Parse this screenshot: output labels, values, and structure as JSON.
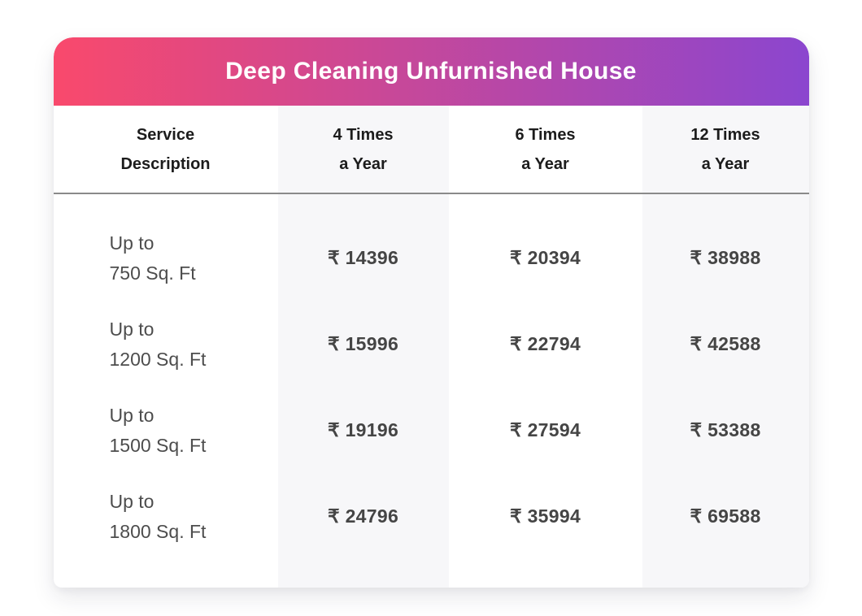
{
  "header": {
    "title": "Deep Cleaning Unfurnished House",
    "gradient_start": "#F9496C",
    "gradient_end": "#8B46CF"
  },
  "table": {
    "columns": [
      {
        "line1": "Service",
        "line2": "Description"
      },
      {
        "line1": "4 Times",
        "line2": "a Year"
      },
      {
        "line1": "6 Times",
        "line2": "a Year"
      },
      {
        "line1": "12 Times",
        "line2": "a Year"
      }
    ],
    "rows": [
      {
        "label_line1": "Up to",
        "label_line2": "750 Sq. Ft",
        "prices": [
          "₹ 14396",
          "₹ 20394",
          "₹ 38988"
        ]
      },
      {
        "label_line1": "Up to",
        "label_line2": "1200 Sq. Ft",
        "prices": [
          "₹ 15996",
          "₹ 22794",
          "₹ 42588"
        ]
      },
      {
        "label_line1": "Up to",
        "label_line2": "1500 Sq. Ft",
        "prices": [
          "₹ 19196",
          "₹ 27594",
          "₹ 53388"
        ]
      },
      {
        "label_line1": "Up to",
        "label_line2": "1800 Sq. Ft",
        "prices": [
          "₹ 24796",
          "₹ 35994",
          "₹ 69588"
        ]
      }
    ]
  },
  "colors": {
    "column_shade_bg": "#f7f7f9",
    "divider": "#8a8a8a",
    "heading_text": "#1c1c1c",
    "label_text": "#4d4d4d",
    "price_text": "#454545",
    "title_text": "#ffffff"
  },
  "chart_data": {
    "type": "table",
    "title": "Deep Cleaning Unfurnished House",
    "columns": [
      "Service Description",
      "4 Times a Year",
      "6 Times a Year",
      "12 Times a Year"
    ],
    "categories": [
      "Up to 750 Sq. Ft",
      "Up to 1200 Sq. Ft",
      "Up to 1500 Sq. Ft",
      "Up to 1800 Sq. Ft"
    ],
    "series": [
      {
        "name": "4 Times a Year",
        "values": [
          14396,
          15996,
          19196,
          24796
        ]
      },
      {
        "name": "6 Times a Year",
        "values": [
          20394,
          22794,
          27594,
          35994
        ]
      },
      {
        "name": "12 Times a Year",
        "values": [
          38988,
          42588,
          53388,
          69588
        ]
      }
    ],
    "currency_symbol": "₹"
  }
}
